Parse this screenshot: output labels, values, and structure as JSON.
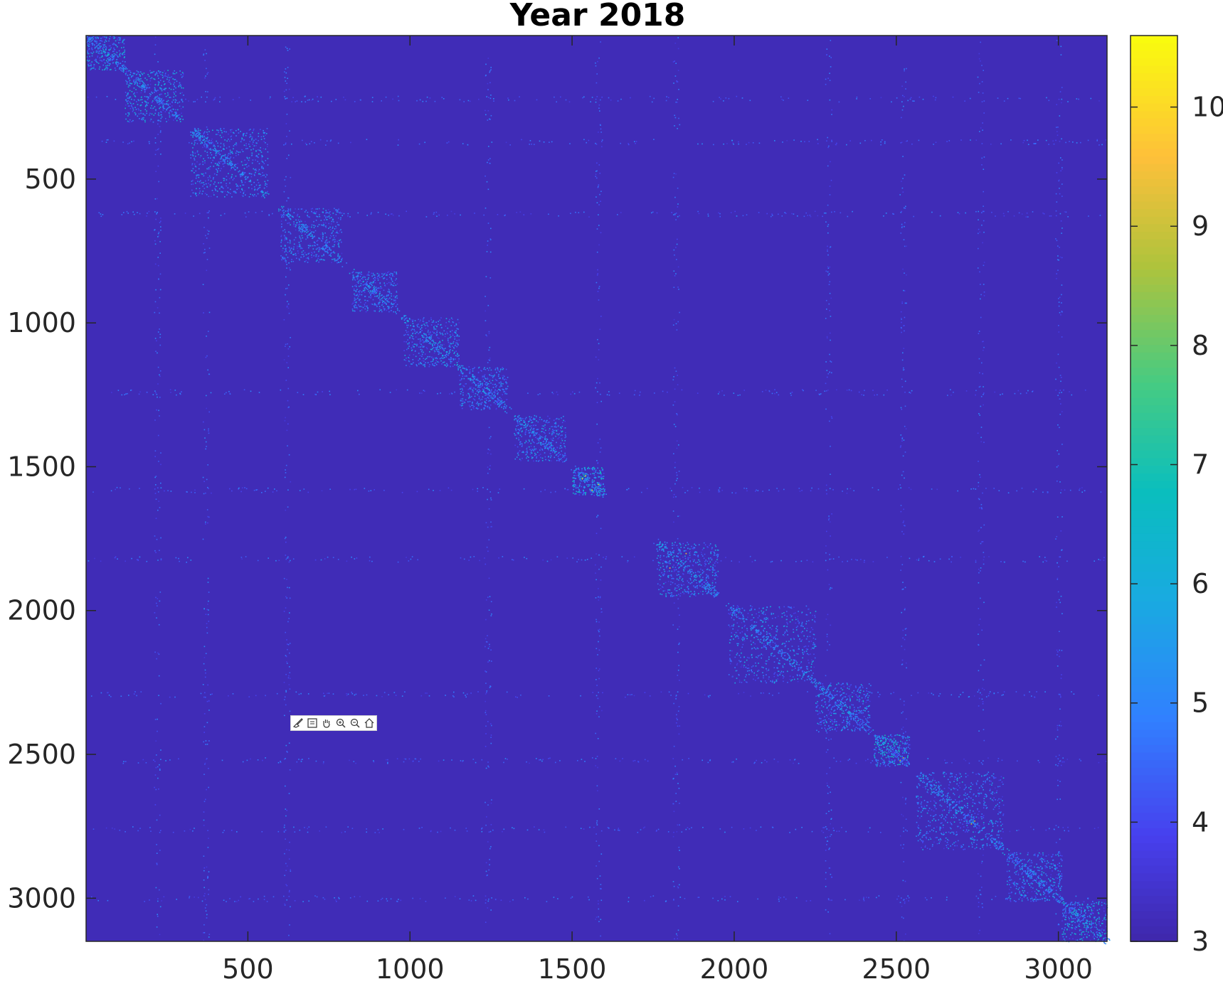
{
  "chart_data": {
    "type": "heatmap",
    "title": "Year 2018",
    "xlabel": "",
    "ylabel": "",
    "x_range": [
      1,
      3150
    ],
    "y_range": [
      1,
      3150
    ],
    "y_direction": "reversed",
    "x_ticks": [
      500,
      1000,
      1500,
      2000,
      2500,
      3000
    ],
    "y_ticks": [
      500,
      1000,
      1500,
      2000,
      2500,
      3000
    ],
    "colorbar": {
      "colormap": "parula",
      "limits": [
        3,
        10.6
      ],
      "ticks": [
        3,
        4,
        5,
        6,
        7,
        8,
        9,
        10
      ],
      "position": "right"
    },
    "background_value": 3.2,
    "structure": "sparse symmetric matrix with block clusters along the main diagonal",
    "diagonal_blocks": [
      {
        "start": 1,
        "end": 120,
        "value": 5.2
      },
      {
        "start": 120,
        "end": 300,
        "value": 5.3
      },
      {
        "start": 320,
        "end": 560,
        "value": 5.0
      },
      {
        "start": 600,
        "end": 790,
        "value": 4.9
      },
      {
        "start": 820,
        "end": 960,
        "value": 4.8
      },
      {
        "start": 980,
        "end": 1150,
        "value": 4.9
      },
      {
        "start": 1150,
        "end": 1300,
        "value": 4.8
      },
      {
        "start": 1320,
        "end": 1480,
        "value": 4.9
      },
      {
        "start": 1500,
        "end": 1600,
        "value": 5.6
      },
      {
        "start": 1760,
        "end": 1950,
        "value": 5.0
      },
      {
        "start": 1980,
        "end": 2250,
        "value": 4.9
      },
      {
        "start": 2250,
        "end": 2420,
        "value": 5.0
      },
      {
        "start": 2430,
        "end": 2540,
        "value": 5.6
      },
      {
        "start": 2560,
        "end": 2830,
        "value": 4.9
      },
      {
        "start": 2840,
        "end": 3010,
        "value": 5.0
      },
      {
        "start": 3010,
        "end": 3150,
        "value": 5.5
      }
    ],
    "off_diagonal_stripes": [
      220,
      370,
      620,
      1240,
      1580,
      1820,
      2290,
      2520,
      2760,
      3000
    ],
    "colors": {
      "background": "#3b2aa8",
      "axis": "#262626",
      "low": "#3e26a8",
      "high": "#f9fb0e"
    }
  },
  "toolbar": {
    "icons": [
      "brush-icon",
      "data-tip-icon",
      "pan-icon",
      "zoom-in-icon",
      "zoom-out-icon",
      "home-icon"
    ]
  }
}
